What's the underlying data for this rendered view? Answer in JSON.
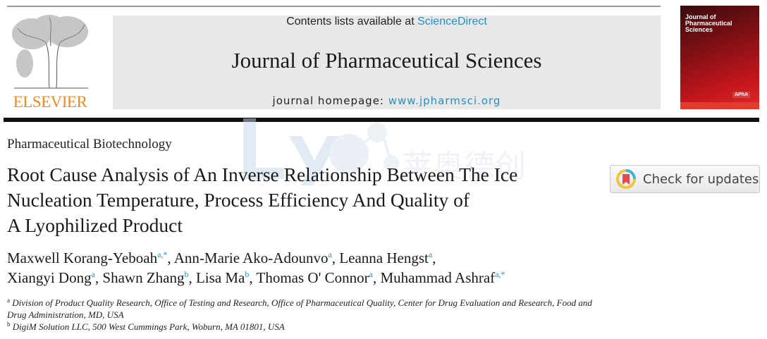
{
  "header": {
    "publisher": "ELSEVIER",
    "contents_prefix": "Contents lists available at ",
    "contents_link": "ScienceDirect",
    "journal_title": "Journal of Pharmaceutical Sciences",
    "homepage_prefix": "journal homepage: ",
    "homepage_link": "www.jpharmsci.org",
    "cover_title_lines": [
      "Journal of",
      "Pharmaceutical",
      "Sciences"
    ],
    "cover_badge": "APhA"
  },
  "watermark": {
    "latin": "Ly",
    "chinese": "莱奥德创"
  },
  "article": {
    "section": "Pharmaceutical Biotechnology",
    "title_lines": [
      "Root Cause Analysis of An Inverse Relationship Between The Ice",
      "Nucleation Temperature, Process Efficiency And Quality of",
      "A Lyophilized Product"
    ],
    "check_updates_label": "Check for updates",
    "authors": [
      {
        "name": "Maxwell Korang-Yeboah",
        "sup": "a,*",
        "sep": ", "
      },
      {
        "name": "Ann-Marie Ako-Adounvo",
        "sup": "a",
        "sep": ", "
      },
      {
        "name": "Leanna Hengst",
        "sup": "a",
        "sep": ","
      },
      {
        "name": "Xiangyi Dong",
        "sup": "a",
        "sep": ", "
      },
      {
        "name": "Shawn Zhang",
        "sup": "b",
        "sep": ", "
      },
      {
        "name": "Lisa Ma",
        "sup": "b",
        "sep": ", "
      },
      {
        "name": "Thomas O' Connor",
        "sup": "a",
        "sep": ", "
      },
      {
        "name": "Muhammad Ashraf",
        "sup": "a,*",
        "sep": ""
      }
    ],
    "affiliations": [
      {
        "mark": "a",
        "text": "Division of Product Quality Research, Office of Testing and Research, Office of Pharmaceutical Quality, Center for Drug Evaluation and Research, Food and Drug Administration, MD, USA"
      },
      {
        "mark": "b",
        "text": "DigiM Solution LLC, 500 West Cummings Park, Woburn, MA 01801, USA"
      }
    ]
  },
  "colors": {
    "link": "#2a8fc0",
    "elsevier_orange": "#f08a1c",
    "cover_red": "#c4161c"
  }
}
